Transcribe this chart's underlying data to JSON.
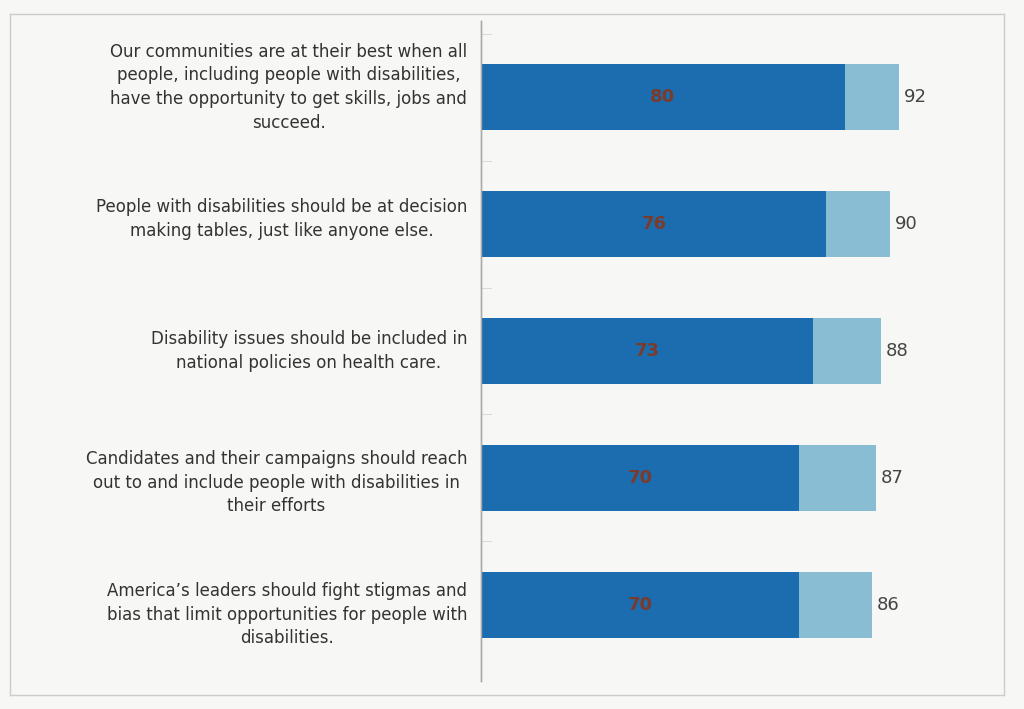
{
  "categories": [
    "Our communities are at their best when all\npeople, including people with disabilities,\nhave the opportunity to get skills, jobs and\nsucceed.",
    "People with disabilities should be at decision\nmaking tables, just like anyone else.",
    "Disability issues should be included in\nnational policies on health care.",
    "Candidates and their campaigns should reach\nout to and include people with disabilities in\ntheir efforts",
    "America’s leaders should fight stigmas and\nbias that limit opportunities for people with\ndisabilities."
  ],
  "strong_agree": [
    80,
    76,
    73,
    70,
    70
  ],
  "total_agree": [
    92,
    90,
    88,
    87,
    86
  ],
  "strong_agree_color": "#1b6daf",
  "not_so_strong_color": "#89bdd3",
  "bar_label_color": "#7b3b2a",
  "total_label_color": "#444444",
  "background_color": "#f7f7f5",
  "text_area_color": "#ffffff",
  "xlim_max": 100,
  "bar_height": 0.52,
  "figsize": [
    10.24,
    7.09
  ],
  "dpi": 100,
  "label_fontsize": 13,
  "total_fontsize": 13,
  "cat_fontsize": 12
}
